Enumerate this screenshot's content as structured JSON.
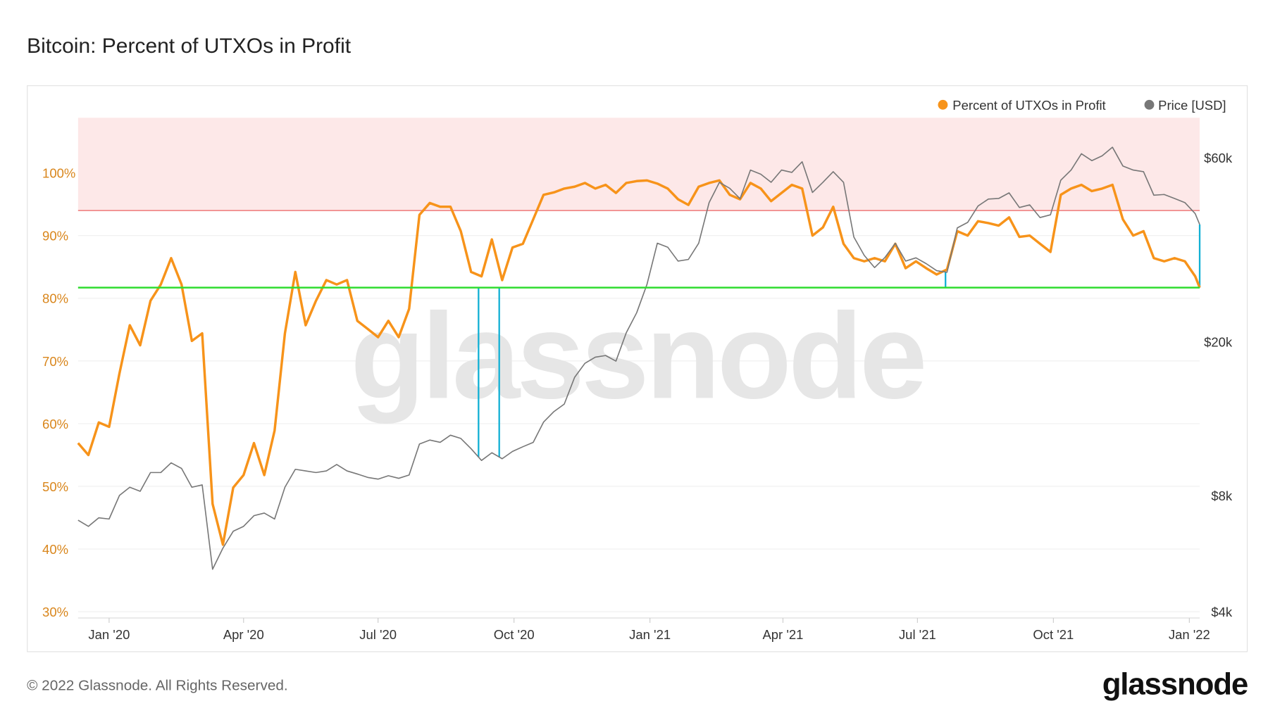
{
  "header": {
    "title": "Bitcoin: Percent of UTXOs in Profit"
  },
  "footer": {
    "copyright": "© 2022 Glassnode. All Rights Reserved.",
    "logo": "glassnode"
  },
  "watermark": "glassnode",
  "colors": {
    "percent": "#f7931a",
    "price": "#777777",
    "upper_zone": "#fde8e8",
    "upper_line": "#f08a8a",
    "support_line": "#2fdc2f",
    "markers": "#12b0d4"
  },
  "chart_data": {
    "type": "line",
    "title": "Bitcoin: Percent of UTXOs in Profit",
    "legend": {
      "placement": "top-right",
      "entries": [
        "Percent of UTXOs in Profit",
        "Price [USD]"
      ]
    },
    "xlim": [
      "2019-12-11",
      "2022-01-08"
    ],
    "x_ticks": [
      {
        "date": "2020-01-01",
        "label": "Jan '20"
      },
      {
        "date": "2020-04-01",
        "label": "Apr '20"
      },
      {
        "date": "2020-07-01",
        "label": "Jul '20"
      },
      {
        "date": "2020-10-01",
        "label": "Oct '20"
      },
      {
        "date": "2021-01-01",
        "label": "Jan '21"
      },
      {
        "date": "2021-04-01",
        "label": "Apr '21"
      },
      {
        "date": "2021-07-01",
        "label": "Jul '21"
      },
      {
        "date": "2021-10-01",
        "label": "Oct '21"
      },
      {
        "date": "2022-01-01",
        "label": "Jan '22"
      }
    ],
    "y_left": {
      "scale": "linear",
      "ylim": [
        29,
        108.8
      ],
      "ticks": [
        {
          "value": 30,
          "label": "30%"
        },
        {
          "value": 40,
          "label": "40%"
        },
        {
          "value": 50,
          "label": "50%"
        },
        {
          "value": 60,
          "label": "60%"
        },
        {
          "value": 70,
          "label": "70%"
        },
        {
          "value": 80,
          "label": "80%"
        },
        {
          "value": 90,
          "label": "90%"
        },
        {
          "value": 100,
          "label": "100%"
        }
      ]
    },
    "y_right": {
      "scale": "log",
      "ylim": [
        3850,
        76200
      ],
      "ticks": [
        {
          "value": 4000,
          "label": "$4k"
        },
        {
          "value": 8000,
          "label": "$8k"
        },
        {
          "value": 20000,
          "label": "$20k"
        },
        {
          "value": 60000,
          "label": "$60k"
        }
      ]
    },
    "grid": true,
    "upper_zone_threshold": 94,
    "support_level": 81.7,
    "marker_dates": [
      "2020-09-07",
      "2020-09-21",
      "2021-07-20",
      "2022-01-08"
    ],
    "x": [
      "2019-12-11",
      "2019-12-18",
      "2019-12-25",
      "2020-01-01",
      "2020-01-08",
      "2020-01-15",
      "2020-01-22",
      "2020-01-29",
      "2020-02-05",
      "2020-02-12",
      "2020-02-19",
      "2020-02-26",
      "2020-03-04",
      "2020-03-11",
      "2020-03-18",
      "2020-03-25",
      "2020-04-01",
      "2020-04-08",
      "2020-04-15",
      "2020-04-22",
      "2020-04-29",
      "2020-05-06",
      "2020-05-13",
      "2020-05-20",
      "2020-05-27",
      "2020-06-03",
      "2020-06-10",
      "2020-06-17",
      "2020-06-24",
      "2020-07-01",
      "2020-07-08",
      "2020-07-15",
      "2020-07-22",
      "2020-07-29",
      "2020-08-05",
      "2020-08-12",
      "2020-08-19",
      "2020-08-26",
      "2020-09-02",
      "2020-09-09",
      "2020-09-16",
      "2020-09-23",
      "2020-09-30",
      "2020-10-07",
      "2020-10-14",
      "2020-10-21",
      "2020-10-28",
      "2020-11-04",
      "2020-11-11",
      "2020-11-18",
      "2020-11-25",
      "2020-12-02",
      "2020-12-09",
      "2020-12-16",
      "2020-12-23",
      "2020-12-30",
      "2021-01-06",
      "2021-01-13",
      "2021-01-20",
      "2021-01-27",
      "2021-02-03",
      "2021-02-10",
      "2021-02-17",
      "2021-02-24",
      "2021-03-03",
      "2021-03-10",
      "2021-03-17",
      "2021-03-24",
      "2021-03-31",
      "2021-04-07",
      "2021-04-14",
      "2021-04-21",
      "2021-04-28",
      "2021-05-05",
      "2021-05-12",
      "2021-05-19",
      "2021-05-26",
      "2021-06-02",
      "2021-06-09",
      "2021-06-16",
      "2021-06-23",
      "2021-06-30",
      "2021-07-07",
      "2021-07-14",
      "2021-07-21",
      "2021-07-28",
      "2021-08-04",
      "2021-08-11",
      "2021-08-18",
      "2021-08-25",
      "2021-09-01",
      "2021-09-08",
      "2021-09-15",
      "2021-09-22",
      "2021-09-29",
      "2021-10-06",
      "2021-10-13",
      "2021-10-20",
      "2021-10-27",
      "2021-11-03",
      "2021-11-10",
      "2021-11-17",
      "2021-11-24",
      "2021-12-01",
      "2021-12-08",
      "2021-12-15",
      "2021-12-22",
      "2021-12-29",
      "2022-01-05",
      "2022-01-08"
    ],
    "series": [
      {
        "name": "Percent of UTXOs in Profit",
        "axis": "left",
        "values": [
          56.9,
          55.0,
          60.2,
          59.5,
          68.0,
          75.7,
          72.5,
          79.6,
          82.2,
          86.4,
          82.2,
          73.2,
          74.4,
          47.2,
          40.7,
          49.8,
          51.8,
          56.9,
          51.8,
          58.9,
          74.4,
          84.2,
          75.7,
          79.6,
          82.9,
          82.2,
          82.9,
          76.4,
          75.1,
          73.8,
          76.4,
          73.8,
          78.3,
          93.3,
          95.2,
          94.6,
          94.6,
          90.7,
          84.2,
          83.5,
          89.4,
          82.9,
          88.1,
          88.7,
          92.6,
          96.5,
          96.9,
          97.5,
          97.8,
          98.4,
          97.5,
          98.1,
          96.8,
          98.4,
          98.7,
          98.8,
          98.3,
          97.5,
          95.8,
          94.9,
          97.8,
          98.4,
          98.8,
          96.5,
          95.8,
          98.4,
          97.5,
          95.5,
          96.8,
          98.1,
          97.5,
          90.0,
          91.3,
          94.6,
          88.7,
          86.4,
          85.9,
          86.4,
          85.9,
          88.7,
          84.8,
          85.9,
          84.8,
          83.8,
          84.6,
          90.7,
          90.0,
          92.3,
          92.0,
          91.6,
          92.9,
          89.8,
          90.0,
          88.7,
          87.4,
          96.5,
          97.5,
          98.1,
          97.1,
          97.5,
          98.1,
          92.6,
          90.0,
          90.7,
          86.4,
          85.9,
          86.4,
          85.9,
          83.5,
          81.7
        ]
      },
      {
        "name": "Price [USD]",
        "axis": "right",
        "values": [
          6900,
          6650,
          7000,
          6950,
          8000,
          8400,
          8200,
          9170,
          9170,
          9720,
          9400,
          8400,
          8520,
          5150,
          5840,
          6460,
          6650,
          7090,
          7200,
          6950,
          8400,
          9350,
          9260,
          9170,
          9260,
          9620,
          9260,
          9090,
          8910,
          8820,
          9000,
          8860,
          9040,
          10870,
          11130,
          10980,
          11460,
          11240,
          10570,
          9860,
          10320,
          9960,
          10400,
          10700,
          10980,
          12390,
          13200,
          13800,
          16180,
          17600,
          18260,
          18440,
          17830,
          21130,
          23800,
          28200,
          36040,
          35200,
          32400,
          32710,
          36040,
          45920,
          51840,
          50000,
          47000,
          55770,
          54400,
          51840,
          55770,
          55000,
          58600,
          48800,
          51840,
          55240,
          51840,
          37400,
          33520,
          31160,
          33100,
          36040,
          32400,
          33030,
          31900,
          30600,
          30300,
          39500,
          40800,
          45000,
          46900,
          47080,
          48680,
          44600,
          45300,
          42000,
          42700,
          52500,
          55770,
          61480,
          59000,
          60700,
          63900,
          57150,
          55770,
          55240,
          48000,
          48200,
          47080,
          45920,
          43000,
          40300
        ]
      }
    ]
  }
}
